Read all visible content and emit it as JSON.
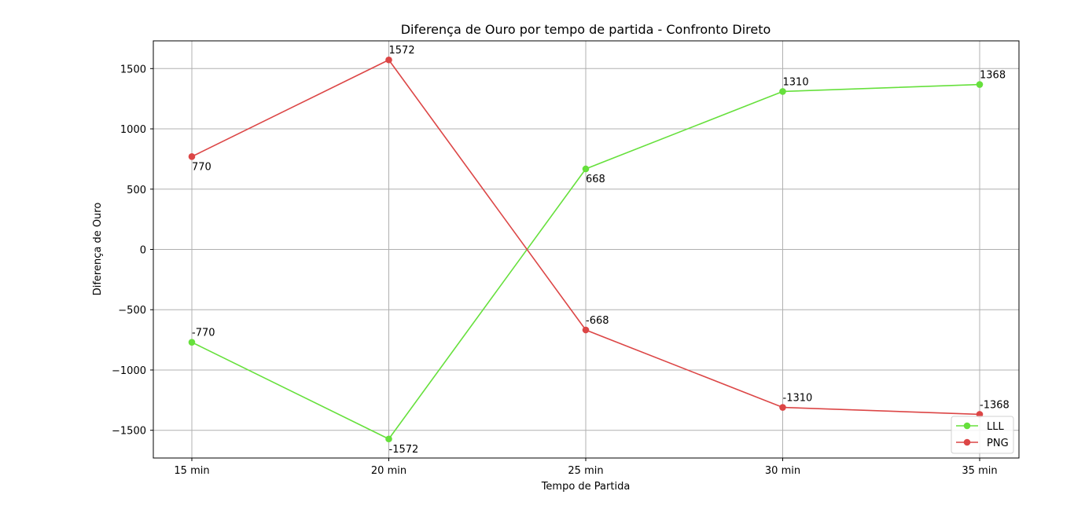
{
  "chart_data": {
    "type": "line",
    "title": "Diferença de Ouro por tempo de partida - Confronto Direto",
    "xlabel": "Tempo de Partida",
    "ylabel": "Diferença de Ouro",
    "categories": [
      "15 min",
      "20 min",
      "25 min",
      "30 min",
      "35 min"
    ],
    "ylim": [
      -1730,
      1730
    ],
    "yticks": [
      -1500,
      -1000,
      -500,
      0,
      500,
      1000,
      1500
    ],
    "ytick_labels": [
      "−1500",
      "−1000",
      "−500",
      "0",
      "500",
      "1000",
      "1500"
    ],
    "grid": true,
    "legend_position": "lower right",
    "series": [
      {
        "name": "LLL",
        "color": "#66e03c",
        "values": [
          -770,
          -1572,
          668,
          1310,
          1368
        ],
        "data_labels": [
          "-770",
          "-1572",
          "668",
          "1310",
          "1368"
        ],
        "label_positions": [
          "above",
          "below",
          "below",
          "above",
          "above"
        ]
      },
      {
        "name": "PNG",
        "color": "#dc4646",
        "values": [
          770,
          1572,
          -668,
          -1310,
          -1368
        ],
        "data_labels": [
          "770",
          "1572",
          "-668",
          "-1310",
          "-1368"
        ],
        "label_positions": [
          "below",
          "above",
          "above",
          "above",
          "above"
        ]
      }
    ]
  }
}
